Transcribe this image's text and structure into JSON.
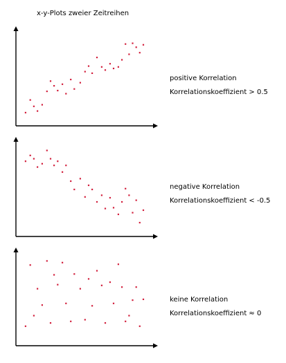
{
  "figure": {
    "title": "x-y-Plots zweier Zeitreihen"
  },
  "colors": {
    "axis": "#000000",
    "point": "#d21f3c"
  },
  "chart_data": [
    {
      "type": "scatter",
      "title": "",
      "annotation": {
        "label": "positive Korrelation",
        "coefficient": "Korrelationskoeffizient > 0.5"
      },
      "xlim": [
        0,
        100
      ],
      "ylim": [
        0,
        100
      ],
      "grid": false,
      "points": [
        [
          4,
          8
        ],
        [
          8,
          24
        ],
        [
          11,
          16
        ],
        [
          14,
          10
        ],
        [
          18,
          18
        ],
        [
          22,
          35
        ],
        [
          25,
          48
        ],
        [
          28,
          42
        ],
        [
          31,
          36
        ],
        [
          35,
          44
        ],
        [
          38,
          32
        ],
        [
          42,
          50
        ],
        [
          45,
          38
        ],
        [
          50,
          46
        ],
        [
          54,
          60
        ],
        [
          57,
          67
        ],
        [
          60,
          58
        ],
        [
          64,
          78
        ],
        [
          68,
          66
        ],
        [
          71,
          62
        ],
        [
          75,
          70
        ],
        [
          78,
          64
        ],
        [
          82,
          66
        ],
        [
          85,
          75
        ],
        [
          88,
          95
        ],
        [
          91,
          82
        ],
        [
          94,
          96
        ],
        [
          97,
          91
        ],
        [
          100,
          84
        ],
        [
          103,
          94
        ]
      ]
    },
    {
      "type": "scatter",
      "title": "",
      "annotation": {
        "label": "negative Korrelation",
        "coefficient": "Korrelationskoeffizient < -0.5"
      },
      "xlim": [
        0,
        100
      ],
      "ylim": [
        0,
        100
      ],
      "grid": false,
      "points": [
        [
          4,
          79
        ],
        [
          8,
          86
        ],
        [
          11,
          82
        ],
        [
          14,
          72
        ],
        [
          18,
          76
        ],
        [
          22,
          92
        ],
        [
          25,
          82
        ],
        [
          28,
          74
        ],
        [
          31,
          79
        ],
        [
          35,
          66
        ],
        [
          38,
          74
        ],
        [
          42,
          55
        ],
        [
          45,
          45
        ],
        [
          50,
          58
        ],
        [
          54,
          36
        ],
        [
          57,
          50
        ],
        [
          60,
          45
        ],
        [
          64,
          30
        ],
        [
          68,
          38
        ],
        [
          71,
          22
        ],
        [
          75,
          35
        ],
        [
          78,
          23
        ],
        [
          82,
          15
        ],
        [
          85,
          30
        ],
        [
          88,
          46
        ],
        [
          91,
          38
        ],
        [
          94,
          17
        ],
        [
          97,
          32
        ],
        [
          100,
          5
        ],
        [
          103,
          20
        ]
      ]
    },
    {
      "type": "scatter",
      "title": "",
      "annotation": {
        "label": "keine Korrelation",
        "coefficient": "Korrelationskoeffizient ≈ 0"
      },
      "xlim": [
        0,
        100
      ],
      "ylim": [
        0,
        100
      ],
      "grid": false,
      "points": [
        [
          4,
          12
        ],
        [
          8,
          87
        ],
        [
          11,
          25
        ],
        [
          14,
          58
        ],
        [
          18,
          38
        ],
        [
          22,
          92
        ],
        [
          25,
          16
        ],
        [
          28,
          75
        ],
        [
          31,
          63
        ],
        [
          35,
          90
        ],
        [
          38,
          40
        ],
        [
          42,
          18
        ],
        [
          45,
          76
        ],
        [
          50,
          58
        ],
        [
          54,
          20
        ],
        [
          57,
          70
        ],
        [
          60,
          37
        ],
        [
          64,
          80
        ],
        [
          68,
          62
        ],
        [
          71,
          16
        ],
        [
          75,
          66
        ],
        [
          78,
          40
        ],
        [
          82,
          88
        ],
        [
          85,
          60
        ],
        [
          88,
          18
        ],
        [
          91,
          25
        ],
        [
          94,
          44
        ],
        [
          97,
          60
        ],
        [
          100,
          12
        ],
        [
          103,
          45
        ]
      ]
    }
  ]
}
